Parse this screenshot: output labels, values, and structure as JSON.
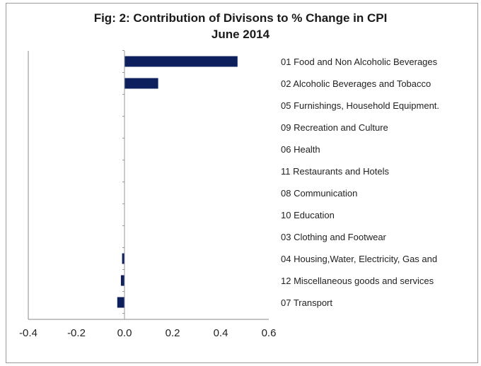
{
  "chart_data": {
    "type": "bar",
    "orientation": "horizontal",
    "title": "Fig: 2: Contribution of Divisons to % Change in CPI",
    "subtitle": "June 2014",
    "categories": [
      "01 Food and Non Alcoholic Beverages",
      "02 Alcoholic Beverages and Tobacco",
      "05 Furnishings, Household Equipment.",
      "09 Recreation and Culture",
      "06 Health",
      "11 Restaurants and Hotels",
      "08 Communication",
      "10 Education",
      "03 Clothing and Footwear",
      "04 Housing,Water, Electricity, Gas and",
      "12 Miscellaneous goods and services",
      "07 Transport"
    ],
    "values": [
      0.47,
      0.14,
      0.0,
      0.0,
      0.0,
      0.0,
      0.0,
      0.0,
      0.0,
      -0.01,
      -0.015,
      -0.03
    ],
    "xlim": [
      -0.4,
      0.6
    ],
    "xticks": [
      "-0.4",
      "-0.2",
      "0.0",
      "0.2",
      "0.4",
      "0.6"
    ],
    "bar_color": "#0d1f5c",
    "grid": false,
    "legend": "none"
  }
}
